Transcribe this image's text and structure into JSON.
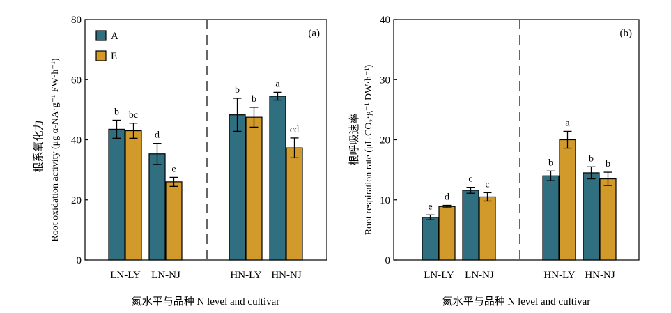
{
  "colors": {
    "A": "#2f6f80",
    "E": "#d19a2b",
    "axis": "#000000"
  },
  "legend": [
    {
      "key": "A",
      "label": "A"
    },
    {
      "key": "E",
      "label": "E"
    }
  ],
  "chart_data": [
    {
      "type": "bar",
      "panel_label": "(a)",
      "title": "",
      "ylabel_cn": "根系氧化力",
      "ylabel_en": "Root oxidation activity (μg α-NA·g⁻¹ FW·h⁻¹)",
      "xlabel": "氮水平与品种 N level and cultivar",
      "ylim": [
        0,
        80
      ],
      "yticks": [
        0,
        20,
        40,
        60,
        80
      ],
      "categories": [
        "LN-LY",
        "LN-NJ",
        "HN-LY",
        "HN-NJ"
      ],
      "series": [
        {
          "name": "A",
          "values": [
            43.5,
            35.3,
            48.3,
            54.5
          ],
          "errors": [
            3.0,
            3.5,
            5.5,
            1.3
          ],
          "letters": [
            "b",
            "d",
            "b",
            "a"
          ]
        },
        {
          "name": "E",
          "values": [
            43.0,
            26.0,
            47.5,
            37.3
          ],
          "errors": [
            2.5,
            1.5,
            3.3,
            3.3
          ],
          "letters": [
            "bc",
            "e",
            "b",
            "cd"
          ]
        }
      ],
      "legend_position": "top-left",
      "grid": false
    },
    {
      "type": "bar",
      "panel_label": "(b)",
      "title": "",
      "ylabel_cn": "根呼吸速率",
      "ylabel_en": "Root respiration rate (μL CO₂·g⁻¹ DW·h⁻¹)",
      "xlabel": "氮水平与品种 N level and cultivar",
      "ylim": [
        0,
        40
      ],
      "yticks": [
        0,
        10,
        20,
        30,
        40
      ],
      "categories": [
        "LN-LY",
        "LN-NJ",
        "HN-LY",
        "HN-NJ"
      ],
      "series": [
        {
          "name": "A",
          "values": [
            7.1,
            11.6,
            14.0,
            14.5
          ],
          "errors": [
            0.4,
            0.5,
            0.8,
            1.0
          ],
          "letters": [
            "e",
            "c",
            "b",
            "b"
          ]
        },
        {
          "name": "E",
          "values": [
            8.9,
            10.5,
            20.0,
            13.5
          ],
          "errors": [
            0.2,
            0.7,
            1.4,
            1.1
          ],
          "letters": [
            "d",
            "c",
            "a",
            "b"
          ]
        }
      ],
      "grid": false
    }
  ]
}
